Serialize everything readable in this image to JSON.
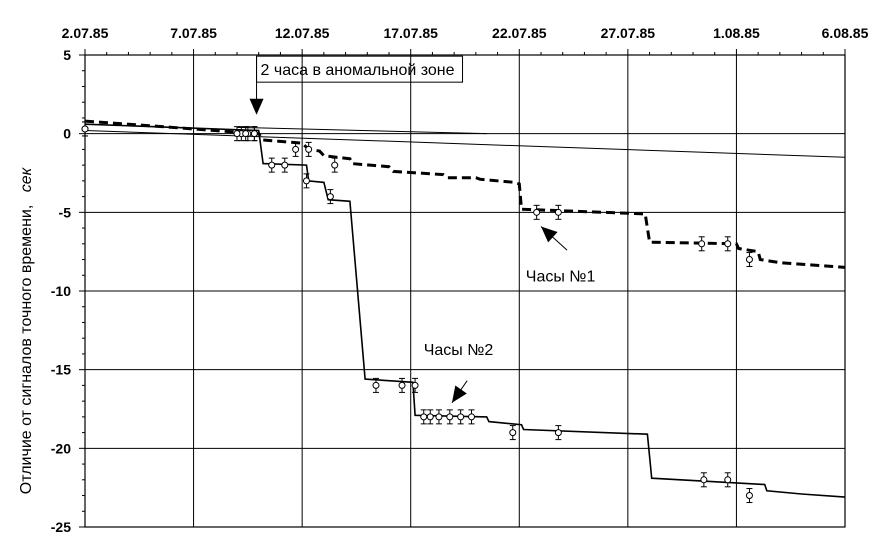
{
  "chart_data": {
    "type": "line",
    "x_axis_position": "top",
    "x_ticks": [
      "2.07.85",
      "7.07.85",
      "12.07.85",
      "17.07.85",
      "22.07.85",
      "27.07.85",
      "1.08.85",
      "6.08.85"
    ],
    "x_tick_days": [
      0,
      5,
      10,
      15,
      20,
      25,
      30,
      35
    ],
    "y_ticks": [
      "5",
      "0",
      "-5",
      "-10",
      "-15",
      "-20",
      "-25"
    ],
    "y_tick_values": [
      5,
      0,
      -5,
      -10,
      -15,
      -20,
      -25
    ],
    "ylim": [
      -25,
      5
    ],
    "xlim": [
      "2.07.85",
      "6.08.85"
    ],
    "ylabel": "Отличие от сигналов точного времени,",
    "ylabel_unit": "сек",
    "grid": true,
    "series": [
      {
        "name": "Часы №1",
        "style": "dashed-thick",
        "line": [
          [
            0,
            0.8
          ],
          [
            7,
            0.1
          ],
          [
            8,
            0.0
          ],
          [
            8.2,
            -0.4
          ],
          [
            10,
            -0.6
          ],
          [
            10.3,
            -1.0
          ],
          [
            10.8,
            -1.1
          ],
          [
            11,
            -1.4
          ],
          [
            12.2,
            -1.6
          ],
          [
            12.3,
            -1.9
          ],
          [
            14,
            -2.1
          ],
          [
            14.2,
            -2.4
          ],
          [
            16.5,
            -2.6
          ],
          [
            16.7,
            -2.8
          ],
          [
            18,
            -2.8
          ],
          [
            18.2,
            -2.9
          ],
          [
            19.8,
            -3.1
          ],
          [
            20,
            -3.2
          ],
          [
            20.1,
            -4.8
          ],
          [
            25.8,
            -5.1
          ],
          [
            26,
            -6.9
          ],
          [
            30,
            -7.0
          ],
          [
            30.1,
            -7.3
          ],
          [
            31,
            -7.5
          ],
          [
            31.1,
            -8.0
          ],
          [
            32,
            -8.2
          ],
          [
            35,
            -8.5
          ]
        ],
        "points": [
          [
            0,
            0.3
          ],
          [
            7.2,
            0.0
          ],
          [
            7.5,
            0.0
          ],
          [
            7.8,
            0.0
          ],
          [
            10.3,
            -1.0
          ],
          [
            20.8,
            -5.0
          ],
          [
            21.8,
            -5.0
          ],
          [
            28.4,
            -7.0
          ],
          [
            29.6,
            -7.0
          ],
          [
            30.6,
            -8.0
          ]
        ]
      },
      {
        "name": "Часы №2",
        "style": "solid-thick",
        "line": [
          [
            0,
            0.6
          ],
          [
            8,
            0.2
          ],
          [
            8.2,
            -1.9
          ],
          [
            10.2,
            -2.0
          ],
          [
            10.3,
            -3.0
          ],
          [
            11,
            -3.1
          ],
          [
            11.2,
            -4.2
          ],
          [
            12.2,
            -4.3
          ],
          [
            12.9,
            -15.6
          ],
          [
            15.1,
            -15.8
          ],
          [
            15.2,
            -17.9
          ],
          [
            18.5,
            -18.0
          ],
          [
            18.6,
            -18.3
          ],
          [
            20.1,
            -18.5
          ],
          [
            20.2,
            -18.8
          ],
          [
            25.9,
            -19.1
          ],
          [
            26.1,
            -21.9
          ],
          [
            31.3,
            -22.3
          ],
          [
            31.4,
            -22.7
          ],
          [
            33,
            -22.9
          ],
          [
            35,
            -23.1
          ]
        ],
        "points": [
          [
            0,
            0.3
          ],
          [
            7.0,
            0.0
          ],
          [
            7.4,
            0.0
          ],
          [
            7.8,
            0.0
          ],
          [
            8.6,
            -2.0
          ],
          [
            9.2,
            -2.0
          ],
          [
            9.7,
            -1.0
          ],
          [
            10.2,
            -3.0
          ],
          [
            11.3,
            -4.0
          ],
          [
            11.5,
            -2.0
          ],
          [
            13.4,
            -16.0
          ],
          [
            14.6,
            -16.0
          ],
          [
            15.2,
            -16.0
          ],
          [
            15.6,
            -18.0
          ],
          [
            15.9,
            -18.0
          ],
          [
            16.3,
            -18.0
          ],
          [
            16.8,
            -18.0
          ],
          [
            17.3,
            -18.0
          ],
          [
            17.8,
            -18.0
          ],
          [
            19.7,
            -19.0
          ],
          [
            21.8,
            -19.0
          ],
          [
            28.5,
            -22.0
          ],
          [
            29.6,
            -22.0
          ],
          [
            30.6,
            -23.0
          ]
        ]
      }
    ],
    "thin_lines": [
      {
        "from": [
          0,
          0.2
        ],
        "to": [
          35,
          -1.5
        ]
      },
      {
        "from": [
          7,
          0.4
        ],
        "to": [
          18.5,
          0.0
        ]
      },
      {
        "from": [
          0,
          -10.0
        ],
        "to": [
          16.5,
          -10.0
        ]
      }
    ],
    "annotations": [
      {
        "text": "2 часа в аномальной зоне",
        "at": [
          7.9,
          4.1
        ],
        "arrow_to": [
          7.9,
          1.2
        ],
        "boxed": true
      },
      {
        "text": "Часы №1",
        "at": [
          20.3,
          -9.0
        ],
        "arrow_from": [
          22.2,
          -7.4
        ],
        "arrow_to": [
          21.0,
          -5.9
        ],
        "boxed": false
      },
      {
        "text": "Часы №2",
        "at": [
          15.6,
          -13.7
        ],
        "arrow_from": [
          17.6,
          -15.7
        ],
        "arrow_to": [
          16.9,
          -17.1
        ],
        "boxed": false
      }
    ]
  }
}
